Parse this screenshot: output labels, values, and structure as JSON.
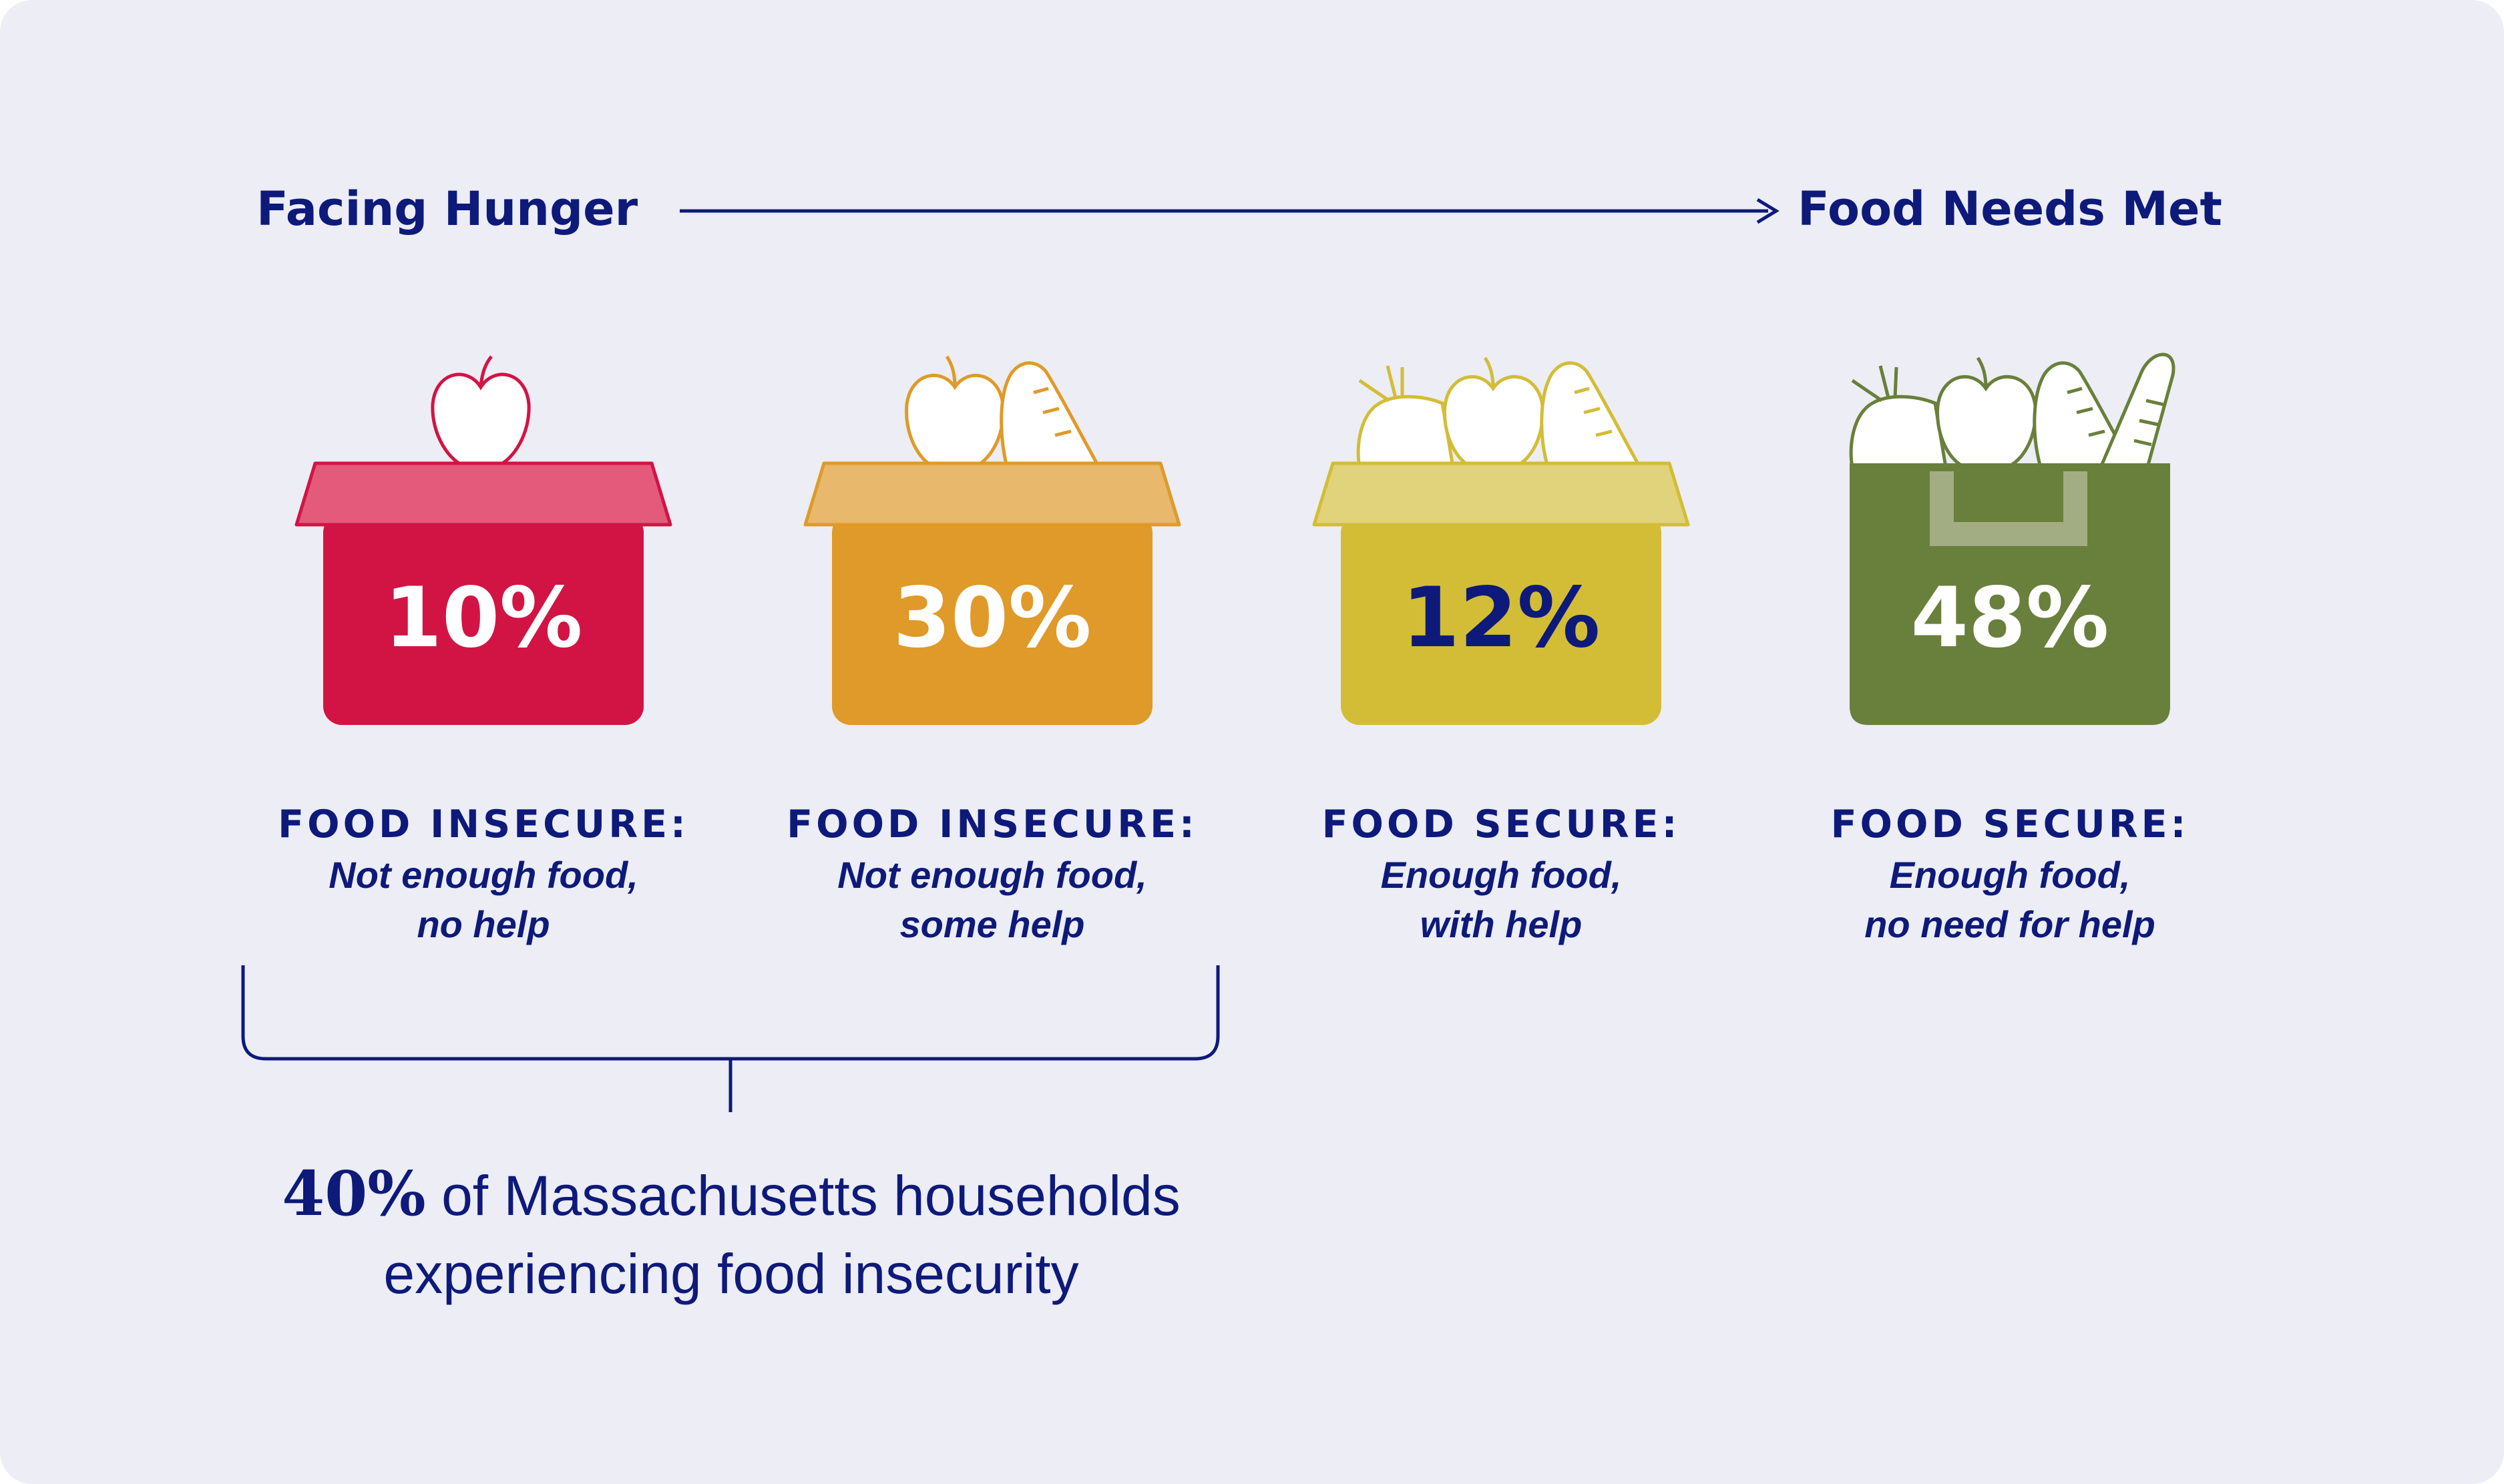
{
  "scale": {
    "left_label": "Facing Hunger",
    "right_label": "Food Needs Met"
  },
  "chart_data": {
    "type": "table",
    "title": "",
    "categories": [
      "FOOD INSECURE: Not enough food, no help",
      "FOOD INSECURE: Not enough food, some help",
      "FOOD SECURE: Enough food, with help",
      "FOOD SECURE: Enough food, no need for help"
    ],
    "values": [
      10,
      30,
      12,
      48
    ],
    "value_labels": [
      "10%",
      "30%",
      "12%",
      "48%"
    ],
    "unit": "% of Massachusetts households"
  },
  "groups": [
    {
      "title": "FOOD INSECURE:",
      "line1": "Not enough food,",
      "line2": "no help",
      "value_label": "10%",
      "icon": "box-with-apple-icon",
      "colors": {
        "box": "#d21444",
        "lid": "#e45a7a",
        "lid_stroke": "#d21444",
        "food_stroke": "#d21444",
        "value_text": "#ffffff"
      }
    },
    {
      "title": "FOOD INSECURE:",
      "line1": "Not enough food,",
      "line2": "some help",
      "value_label": "30%",
      "icon": "box-with-apple-carrot-icon",
      "colors": {
        "box": "#df9a29",
        "lid": "#e8b86c",
        "lid_stroke": "#df9a29",
        "food_stroke": "#df9a29",
        "value_text": "#ffffff"
      }
    },
    {
      "title": "FOOD SECURE:",
      "line1": "Enough food,",
      "line2": "with help",
      "value_label": "12%",
      "icon": "box-with-vegetables-icon",
      "colors": {
        "box": "#d3bd36",
        "lid": "#e1d37b",
        "lid_stroke": "#d3bd36",
        "food_stroke": "#d3bd36",
        "value_text": "#0d1a7a"
      }
    },
    {
      "title": "FOOD SECURE:",
      "line1": "Enough food,",
      "line2": "no need for help",
      "value_label": "48%",
      "icon": "grocery-bag-icon",
      "colors": {
        "box": "#68803b",
        "lid": "#a3ad84",
        "lid_stroke": "#68803b",
        "food_stroke": "#68803b",
        "value_text": "#ffffff"
      }
    }
  ],
  "summary": {
    "highlight": "40%",
    "line1_rest": " of Massachusetts households",
    "line2": "experiencing food insecurity"
  },
  "colors": {
    "background": "#ecedf5",
    "navy": "#0d1a7a"
  }
}
